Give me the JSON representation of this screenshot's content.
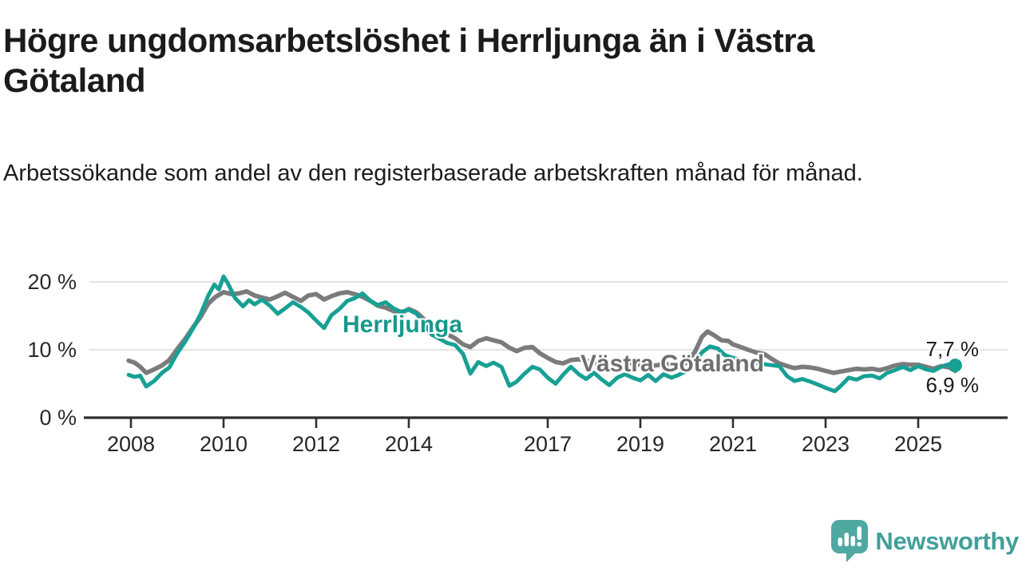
{
  "header": {
    "title": "Högre ungdomsarbetslöshet i Herrljunga än i Västra Götaland",
    "subtitle": "Arbetssökande som andel av den registerbaserade arbetskraften månad för månad."
  },
  "chart_data": {
    "type": "line",
    "title": "Högre ungdomsarbetslöshet i Herrljunga än i Västra Götaland",
    "xlabel": "",
    "ylabel": "",
    "grid": "horizontal-only",
    "legend_position": "inline-labels-on-lines",
    "xlim": [
      2007.1,
      2026.9
    ],
    "ylim": [
      0,
      22.4
    ],
    "x_tick_years": [
      2008,
      2010,
      2012,
      2014,
      2017,
      2019,
      2021,
      2023,
      2025
    ],
    "y_ticks": [
      {
        "value": 0,
        "label": "0 %"
      },
      {
        "value": 10,
        "label": "10 %"
      },
      {
        "value": 20,
        "label": "20 %"
      }
    ],
    "series": [
      {
        "name": "Västra Götaland",
        "label_text": "Västra Götaland",
        "color": "#7B7B7B",
        "label_color": "#6E6E6E",
        "end_value_label": "6,9 %",
        "points": [
          [
            2007.95,
            8.4
          ],
          [
            2008.08,
            8.1
          ],
          [
            2008.2,
            7.5
          ],
          [
            2008.33,
            6.6
          ],
          [
            2008.5,
            7.1
          ],
          [
            2008.67,
            7.7
          ],
          [
            2008.83,
            8.5
          ],
          [
            2009.0,
            10.1
          ],
          [
            2009.17,
            11.6
          ],
          [
            2009.33,
            13.2
          ],
          [
            2009.5,
            14.8
          ],
          [
            2009.67,
            16.8
          ],
          [
            2009.83,
            17.8
          ],
          [
            2010.0,
            18.5
          ],
          [
            2010.17,
            18.2
          ],
          [
            2010.33,
            18.3
          ],
          [
            2010.5,
            18.6
          ],
          [
            2010.67,
            18.0
          ],
          [
            2010.83,
            17.7
          ],
          [
            2011.0,
            17.4
          ],
          [
            2011.17,
            17.9
          ],
          [
            2011.33,
            18.4
          ],
          [
            2011.5,
            17.8
          ],
          [
            2011.67,
            17.2
          ],
          [
            2011.83,
            18.0
          ],
          [
            2012.0,
            18.2
          ],
          [
            2012.17,
            17.4
          ],
          [
            2012.33,
            17.9
          ],
          [
            2012.5,
            18.3
          ],
          [
            2012.67,
            18.5
          ],
          [
            2012.83,
            18.2
          ],
          [
            2013.0,
            17.8
          ],
          [
            2013.17,
            17.2
          ],
          [
            2013.33,
            16.5
          ],
          [
            2013.5,
            16.2
          ],
          [
            2013.67,
            15.7
          ],
          [
            2013.83,
            15.4
          ],
          [
            2014.0,
            16.0
          ],
          [
            2014.17,
            15.5
          ],
          [
            2014.33,
            14.5
          ],
          [
            2014.5,
            13.4
          ],
          [
            2014.67,
            12.7
          ],
          [
            2014.83,
            12.3
          ],
          [
            2015.0,
            11.7
          ],
          [
            2015.17,
            10.8
          ],
          [
            2015.33,
            10.4
          ],
          [
            2015.5,
            11.3
          ],
          [
            2015.67,
            11.7
          ],
          [
            2015.83,
            11.4
          ],
          [
            2016.0,
            11.1
          ],
          [
            2016.17,
            10.3
          ],
          [
            2016.33,
            9.8
          ],
          [
            2016.5,
            10.3
          ],
          [
            2016.67,
            10.4
          ],
          [
            2016.83,
            9.5
          ],
          [
            2017.0,
            8.8
          ],
          [
            2017.17,
            8.2
          ],
          [
            2017.33,
            8.0
          ],
          [
            2017.5,
            8.5
          ],
          [
            2017.67,
            8.6
          ],
          [
            2017.83,
            8.4
          ],
          [
            2018.0,
            8.1
          ],
          [
            2018.17,
            7.9
          ],
          [
            2018.33,
            8.1
          ],
          [
            2018.5,
            8.3
          ],
          [
            2018.67,
            8.2
          ],
          [
            2018.83,
            8.0
          ],
          [
            2019.0,
            7.8
          ],
          [
            2019.17,
            7.6
          ],
          [
            2019.33,
            7.7
          ],
          [
            2019.5,
            7.9
          ],
          [
            2019.67,
            7.8
          ],
          [
            2019.83,
            7.7
          ],
          [
            2020.0,
            8.1
          ],
          [
            2020.17,
            9.6
          ],
          [
            2020.33,
            11.9
          ],
          [
            2020.45,
            12.7
          ],
          [
            2020.6,
            12.1
          ],
          [
            2020.75,
            11.4
          ],
          [
            2020.9,
            11.3
          ],
          [
            2021.0,
            10.8
          ],
          [
            2021.17,
            10.4
          ],
          [
            2021.33,
            10.0
          ],
          [
            2021.5,
            9.6
          ],
          [
            2021.67,
            9.4
          ],
          [
            2021.83,
            8.7
          ],
          [
            2022.0,
            8.0
          ],
          [
            2022.17,
            7.6
          ],
          [
            2022.33,
            7.3
          ],
          [
            2022.5,
            7.5
          ],
          [
            2022.67,
            7.4
          ],
          [
            2022.83,
            7.2
          ],
          [
            2023.0,
            6.9
          ],
          [
            2023.17,
            6.6
          ],
          [
            2023.33,
            6.8
          ],
          [
            2023.5,
            7.0
          ],
          [
            2023.67,
            7.2
          ],
          [
            2023.83,
            7.1
          ],
          [
            2024.0,
            7.2
          ],
          [
            2024.17,
            7.0
          ],
          [
            2024.33,
            7.3
          ],
          [
            2024.5,
            7.7
          ],
          [
            2024.67,
            7.9
          ],
          [
            2024.83,
            7.8
          ],
          [
            2025.0,
            7.8
          ],
          [
            2025.17,
            7.5
          ],
          [
            2025.33,
            7.2
          ],
          [
            2025.5,
            7.6
          ],
          [
            2025.67,
            7.4
          ],
          [
            2025.8,
            6.9
          ]
        ]
      },
      {
        "name": "Herrljunga",
        "label_text": "Herrljunga",
        "color": "#18A094",
        "label_color": "#16998D",
        "end_value_label": "7,7 %",
        "end_dot": true,
        "points": [
          [
            2007.95,
            6.3
          ],
          [
            2008.08,
            6.0
          ],
          [
            2008.2,
            6.2
          ],
          [
            2008.33,
            4.6
          ],
          [
            2008.5,
            5.4
          ],
          [
            2008.67,
            6.6
          ],
          [
            2008.83,
            7.4
          ],
          [
            2009.0,
            9.5
          ],
          [
            2009.17,
            11.2
          ],
          [
            2009.33,
            13.0
          ],
          [
            2009.5,
            15.2
          ],
          [
            2009.67,
            18.0
          ],
          [
            2009.8,
            19.6
          ],
          [
            2009.9,
            18.9
          ],
          [
            2010.0,
            20.8
          ],
          [
            2010.1,
            19.7
          ],
          [
            2010.25,
            17.6
          ],
          [
            2010.42,
            16.4
          ],
          [
            2010.55,
            17.3
          ],
          [
            2010.67,
            16.7
          ],
          [
            2010.83,
            17.4
          ],
          [
            2011.0,
            16.5
          ],
          [
            2011.17,
            15.3
          ],
          [
            2011.33,
            16.1
          ],
          [
            2011.5,
            17.0
          ],
          [
            2011.67,
            16.3
          ],
          [
            2011.83,
            15.5
          ],
          [
            2012.0,
            14.3
          ],
          [
            2012.17,
            13.2
          ],
          [
            2012.33,
            15.1
          ],
          [
            2012.5,
            16.0
          ],
          [
            2012.67,
            17.2
          ],
          [
            2012.83,
            17.6
          ],
          [
            2013.0,
            18.3
          ],
          [
            2013.17,
            17.2
          ],
          [
            2013.33,
            16.6
          ],
          [
            2013.5,
            17.0
          ],
          [
            2013.67,
            16.1
          ],
          [
            2013.83,
            15.6
          ],
          [
            2014.0,
            15.9
          ],
          [
            2014.17,
            15.3
          ],
          [
            2014.33,
            13.8
          ],
          [
            2014.5,
            12.2
          ],
          [
            2014.67,
            11.6
          ],
          [
            2014.83,
            11.0
          ],
          [
            2015.0,
            10.7
          ],
          [
            2015.17,
            9.4
          ],
          [
            2015.33,
            6.5
          ],
          [
            2015.5,
            8.2
          ],
          [
            2015.67,
            7.6
          ],
          [
            2015.83,
            8.1
          ],
          [
            2016.0,
            7.5
          ],
          [
            2016.17,
            4.7
          ],
          [
            2016.33,
            5.3
          ],
          [
            2016.5,
            6.5
          ],
          [
            2016.67,
            7.5
          ],
          [
            2016.83,
            7.1
          ],
          [
            2017.0,
            5.9
          ],
          [
            2017.17,
            5.0
          ],
          [
            2017.33,
            6.3
          ],
          [
            2017.5,
            7.5
          ],
          [
            2017.67,
            6.4
          ],
          [
            2017.83,
            5.7
          ],
          [
            2018.0,
            6.6
          ],
          [
            2018.17,
            5.6
          ],
          [
            2018.33,
            4.8
          ],
          [
            2018.5,
            5.9
          ],
          [
            2018.67,
            6.4
          ],
          [
            2018.83,
            5.9
          ],
          [
            2019.0,
            5.5
          ],
          [
            2019.17,
            6.3
          ],
          [
            2019.33,
            5.4
          ],
          [
            2019.5,
            6.4
          ],
          [
            2019.67,
            5.9
          ],
          [
            2019.83,
            6.3
          ],
          [
            2020.0,
            6.9
          ],
          [
            2020.17,
            8.2
          ],
          [
            2020.33,
            9.6
          ],
          [
            2020.5,
            10.5
          ],
          [
            2020.67,
            10.2
          ],
          [
            2020.83,
            9.2
          ],
          [
            2021.0,
            8.8
          ],
          [
            2021.25,
            8.4
          ],
          [
            2021.5,
            8.1
          ],
          [
            2021.75,
            7.8
          ],
          [
            2022.0,
            7.6
          ],
          [
            2022.17,
            6.1
          ],
          [
            2022.33,
            5.4
          ],
          [
            2022.5,
            5.7
          ],
          [
            2022.67,
            5.3
          ],
          [
            2022.83,
            4.9
          ],
          [
            2023.0,
            4.4
          ],
          [
            2023.2,
            3.9
          ],
          [
            2023.33,
            4.7
          ],
          [
            2023.5,
            5.9
          ],
          [
            2023.67,
            5.6
          ],
          [
            2023.83,
            6.1
          ],
          [
            2024.0,
            6.2
          ],
          [
            2024.17,
            5.8
          ],
          [
            2024.33,
            6.6
          ],
          [
            2024.5,
            7.0
          ],
          [
            2024.67,
            7.5
          ],
          [
            2024.83,
            7.0
          ],
          [
            2025.0,
            7.6
          ],
          [
            2025.17,
            7.1
          ],
          [
            2025.33,
            6.9
          ],
          [
            2025.5,
            7.5
          ],
          [
            2025.67,
            7.9
          ],
          [
            2025.8,
            7.7
          ]
        ]
      }
    ],
    "annotations": {
      "herrljunga_label": "Herrljunga",
      "vastra_label": "Västra Götaland",
      "end_label_top": "7,7 %",
      "end_label_bottom": "6,9 %"
    }
  },
  "footer": {
    "brand": "Newsworthy"
  },
  "colors": {
    "herrljunga_line": "#18A094",
    "vastra_line": "#7B7B7B",
    "gridline": "#DBDBDB",
    "axis": "#2F2F2F",
    "text": "#1B1B1B",
    "brand_teal": "#41A09A",
    "logo_mark": "#4FA8A2"
  }
}
